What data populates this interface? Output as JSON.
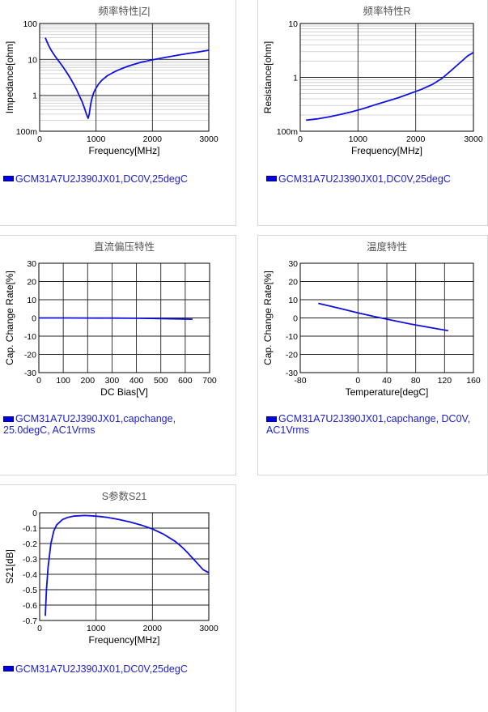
{
  "line_color": "#1010e0",
  "legend_color": "#1d1dcc",
  "chart_data": [
    {
      "id": "z",
      "type": "line",
      "title": "频率特性|Z|",
      "xlabel": "Frequency[MHz]",
      "ylabel": "Impedance[ohm]",
      "xlim": [
        0,
        3000
      ],
      "xticks": [
        0,
        1000,
        2000,
        3000
      ],
      "ylog": true,
      "ylim": [
        0.1,
        100
      ],
      "ytick_labels": [
        "100m",
        "1",
        "10",
        "100"
      ],
      "legend": "GCM31A7U2J390JX01,DC0V,25degC",
      "series": [
        {
          "x": [
            100,
            150,
            200,
            250,
            300,
            350,
            400,
            450,
            500,
            550,
            600,
            650,
            700,
            750,
            800,
            830,
            860,
            880,
            895,
            910,
            930,
            960,
            1000,
            1050,
            1100,
            1200,
            1300,
            1400,
            1500,
            1600,
            1700,
            1800,
            1900,
            2000,
            2200,
            2400,
            2600,
            2800,
            3000
          ],
          "y": [
            40,
            26,
            18.5,
            14,
            10.8,
            8.5,
            6.6,
            5.1,
            3.9,
            2.9,
            2.1,
            1.5,
            1.0,
            0.68,
            0.42,
            0.3,
            0.23,
            0.3,
            0.45,
            0.62,
            0.85,
            1.2,
            1.6,
            2.1,
            2.6,
            3.5,
            4.3,
            5.1,
            5.9,
            6.7,
            7.5,
            8.3,
            9.0,
            9.7,
            11.2,
            12.7,
            14.3,
            16.0,
            18.0
          ]
        }
      ]
    },
    {
      "id": "r",
      "type": "line",
      "title": "频率特性R",
      "xlabel": "Frequency[MHz]",
      "ylabel": "Resistance[ohm]",
      "xlim": [
        0,
        3000
      ],
      "xticks": [
        0,
        1000,
        2000,
        3000
      ],
      "ylog": true,
      "ylim": [
        0.1,
        10
      ],
      "ytick_labels": [
        "100m",
        "1",
        "10"
      ],
      "legend": "GCM31A7U2J390JX01,DC0V,25degC",
      "series": [
        {
          "x": [
            100,
            300,
            500,
            700,
            900,
            1100,
            1300,
            1500,
            1700,
            1900,
            2100,
            2300,
            2450,
            2600,
            2750,
            2900,
            3000
          ],
          "y": [
            0.16,
            0.17,
            0.185,
            0.205,
            0.23,
            0.265,
            0.31,
            0.36,
            0.42,
            0.5,
            0.6,
            0.75,
            0.95,
            1.3,
            1.8,
            2.5,
            2.9
          ]
        }
      ]
    },
    {
      "id": "dc",
      "type": "line",
      "title": "直流偏压特性",
      "xlabel": "DC Bias[V]",
      "ylabel": "Cap. Change Rate[%]",
      "xlim": [
        0,
        700
      ],
      "xticks": [
        0,
        100,
        200,
        300,
        400,
        500,
        600,
        700
      ],
      "ylim": [
        -30,
        30
      ],
      "yticks": [
        -30,
        -20,
        -10,
        0,
        10,
        20,
        30
      ],
      "legend": "GCM31A7U2J390JX01,capchange, 25.0degC, AC1Vrms",
      "series": [
        {
          "x": [
            0,
            100,
            200,
            300,
            400,
            500,
            630
          ],
          "y": [
            0,
            0,
            -0.05,
            -0.1,
            -0.2,
            -0.4,
            -0.7
          ]
        }
      ]
    },
    {
      "id": "temp",
      "type": "line",
      "title": "温度特性",
      "xlabel": "Temperature[degC]",
      "ylabel": "Cap. Change Rate[%]",
      "xlim": [
        -80,
        160
      ],
      "xticks": [
        -80,
        0,
        40,
        80,
        120,
        160
      ],
      "ylim": [
        -30,
        30
      ],
      "yticks": [
        -30,
        -20,
        -10,
        0,
        10,
        20,
        30
      ],
      "legend": "GCM31A7U2J390JX01,capchange, DC0V, AC1Vrms",
      "series": [
        {
          "x": [
            -55,
            -25,
            0,
            25,
            50,
            75,
            100,
            125
          ],
          "y": [
            8,
            5.2,
            2.8,
            0.6,
            -1.5,
            -3.5,
            -5.3,
            -7
          ]
        }
      ]
    },
    {
      "id": "s21",
      "type": "line",
      "title": "S参数S21",
      "xlabel": "Frequency[MHz]",
      "ylabel": "S21[dB]",
      "xlim": [
        0,
        3000
      ],
      "xticks": [
        0,
        1000,
        2000,
        3000
      ],
      "ylim": [
        -0.7,
        0
      ],
      "yticks": [
        0,
        -0.1,
        -0.2,
        -0.3,
        -0.4,
        -0.5,
        -0.6,
        -0.7
      ],
      "ytick_labels": [
        "0",
        "-0.1",
        "-0.2",
        "-0.3",
        "-0.4",
        "-0.5",
        "-0.6",
        "-0.7"
      ],
      "legend": "GCM31A7U2J390JX01,DC0V,25degC",
      "series": [
        {
          "x": [
            100,
            120,
            150,
            200,
            250,
            300,
            400,
            500,
            600,
            800,
            1000,
            1200,
            1400,
            1600,
            1800,
            2000,
            2200,
            2400,
            2500,
            2600,
            2700,
            2800,
            2900,
            3000
          ],
          "y": [
            -0.67,
            -0.5,
            -0.35,
            -0.2,
            -0.12,
            -0.08,
            -0.045,
            -0.03,
            -0.022,
            -0.018,
            -0.022,
            -0.03,
            -0.043,
            -0.06,
            -0.08,
            -0.105,
            -0.14,
            -0.185,
            -0.215,
            -0.25,
            -0.29,
            -0.33,
            -0.37,
            -0.39
          ]
        }
      ]
    }
  ]
}
